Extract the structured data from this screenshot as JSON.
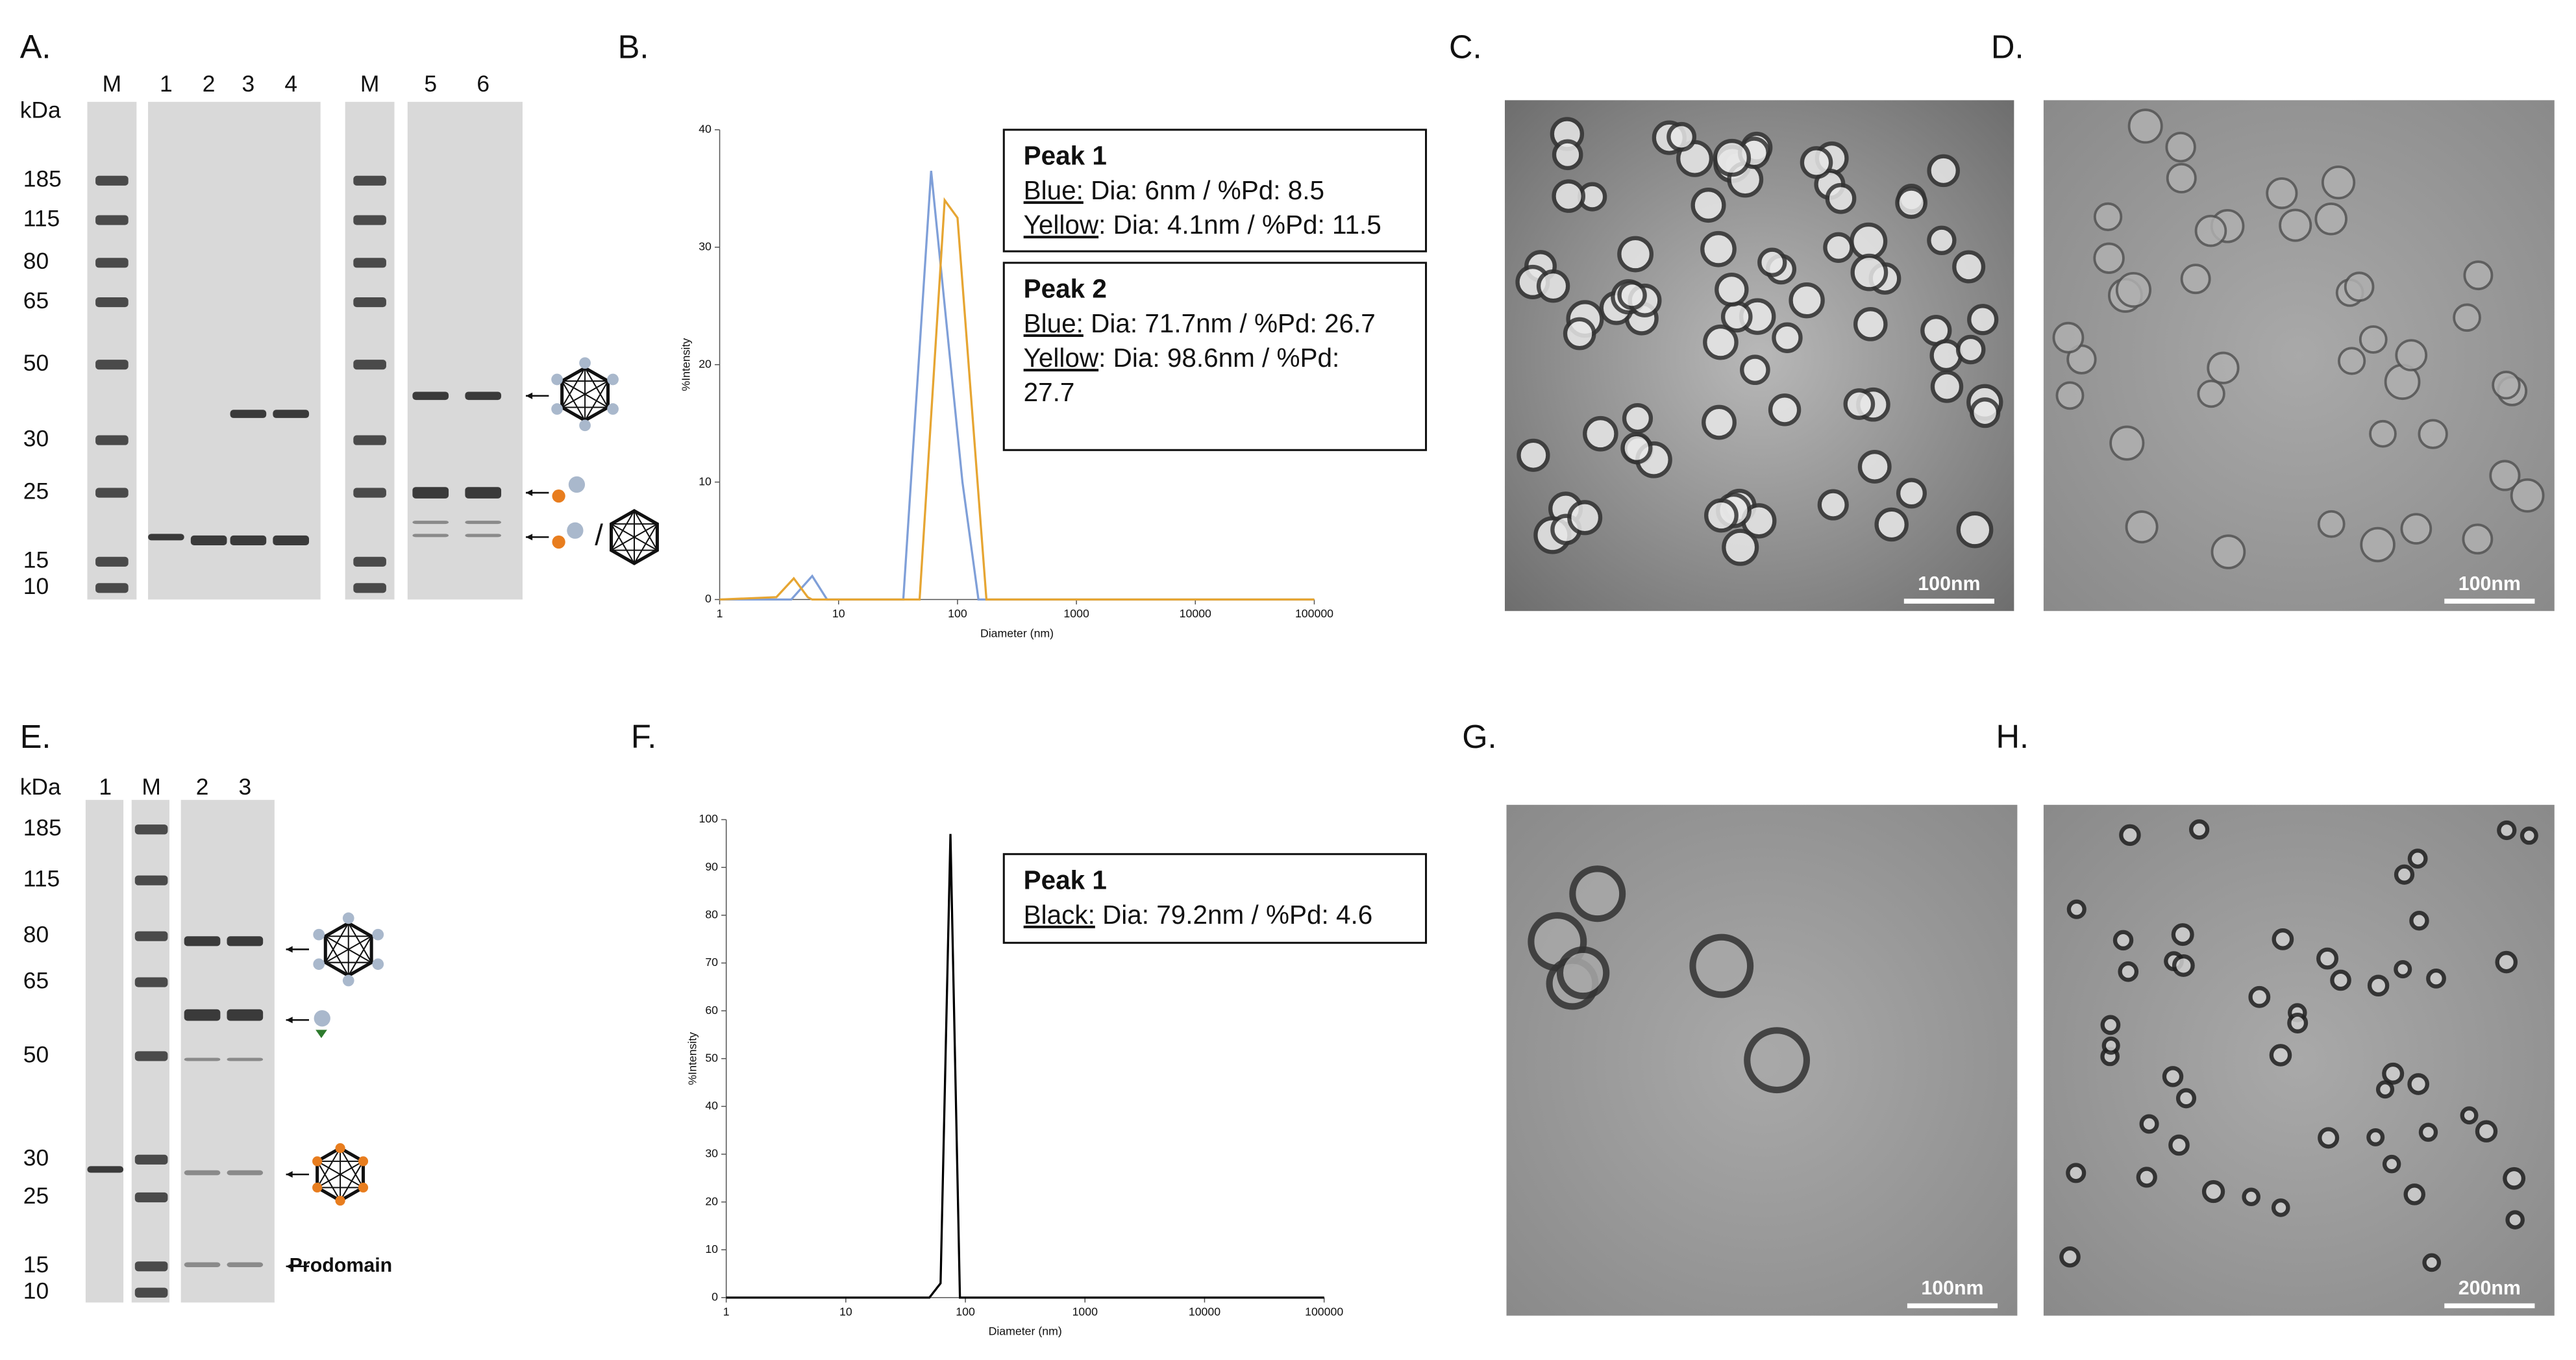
{
  "panel_labels": [
    "A.",
    "B.",
    "C.",
    "D.",
    "E.",
    "F.",
    "G.",
    "H."
  ],
  "gels": [
    {
      "unit": "kDa",
      "lanes": [
        "M",
        "1",
        "2",
        "3",
        "4",
        "M",
        "5",
        "6"
      ],
      "markers": [
        "185",
        "115",
        "80",
        "65",
        "50",
        "30",
        "25",
        "15",
        "10"
      ]
    },
    {
      "unit": "kDa",
      "lanes": [
        "1",
        "M",
        "2",
        "3"
      ],
      "markers": [
        "185",
        "115",
        "80",
        "65",
        "50",
        "30",
        "25",
        "15",
        "10"
      ],
      "annotation": "Prodomain"
    }
  ],
  "images": [
    {
      "scale_bar": "100nm"
    },
    {
      "scale_bar": "100nm"
    },
    {
      "scale_bar": "100nm"
    },
    {
      "scale_bar": "200nm"
    }
  ],
  "chart_data": [
    {
      "type": "line",
      "xlabel": "Diameter (nm)",
      "ylabel": "%Intensity",
      "log_x": true,
      "xlim": [
        1,
        100000
      ],
      "ylim": [
        0,
        40
      ],
      "xticks": [
        1,
        10,
        100,
        1000,
        10000,
        100000
      ],
      "yticks": [
        0,
        10,
        20,
        30,
        40
      ],
      "series": [
        {
          "color": "#7f9fd8",
          "x": [
            1,
            4,
            6,
            8,
            35,
            60,
            110,
            150,
            100000
          ],
          "values": [
            0,
            0,
            2,
            0,
            0,
            36.5,
            10,
            0,
            0
          ]
        },
        {
          "color": "#e6a532",
          "x": [
            1,
            3,
            4.2,
            5.5,
            6,
            48,
            78,
            100,
            175,
            100000
          ],
          "values": [
            0,
            0.2,
            1.8,
            0.2,
            0,
            0,
            34,
            32.5,
            0,
            0
          ]
        }
      ],
      "boxes": [
        {
          "title": "Peak 1",
          "lines": [
            {
              "key": "Blue:",
              "text": " Dia: 6nm / %Pd: 8.5"
            },
            {
              "key": "Yellow",
              "text": ": Dia: 4.1nm / %Pd: 11.5"
            }
          ]
        },
        {
          "title": "Peak 2",
          "lines": [
            {
              "key": "Blue:",
              "text": " Dia: 71.7nm / %Pd: 26.7"
            },
            {
              "key": "Yellow",
              "text": ": Dia: 98.6nm / %Pd:"
            },
            {
              "text": "27.7"
            }
          ]
        }
      ]
    },
    {
      "type": "line",
      "xlabel": "Diameter (nm)",
      "ylabel": "%Intensity",
      "log_x": true,
      "xlim": [
        1,
        100000
      ],
      "ylim": [
        0,
        100
      ],
      "xticks": [
        1,
        10,
        100,
        1000,
        10000,
        100000
      ],
      "yticks": [
        0,
        10,
        20,
        30,
        40,
        50,
        60,
        70,
        80,
        90,
        100
      ],
      "series": [
        {
          "color": "#000000",
          "x": [
            1,
            50,
            62,
            75,
            90,
            100000
          ],
          "values": [
            0,
            0,
            3,
            97,
            0,
            0
          ]
        }
      ],
      "boxes": [
        {
          "title": "Peak 1",
          "lines": [
            {
              "key": "Black:",
              "text": " Dia: 79.2nm / %Pd: 4.6"
            }
          ]
        }
      ]
    }
  ]
}
